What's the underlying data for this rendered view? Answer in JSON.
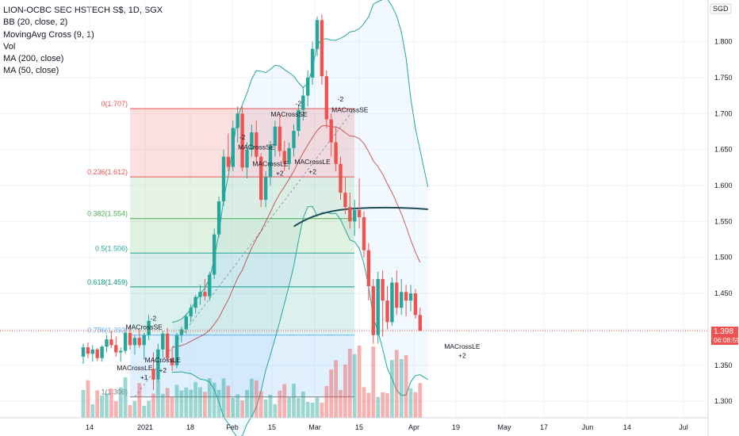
{
  "legend": {
    "title": "LION-OCBC SEC HSTECH S$, 1D, SGX",
    "indicators": [
      "BB (20, close, 2)",
      "MovingAvg Cross (9, 1)",
      "Vol",
      "MA (200, close)",
      "MA (50, close)"
    ]
  },
  "price_badge": {
    "price": "1.398",
    "time": "06:08:59",
    "color": "#ef5350"
  },
  "chart_data": {
    "type": "candlestick",
    "currency": "SGD",
    "y_ticks": [
      "1.300",
      "1.350",
      "1.400",
      "1.450",
      "1.500",
      "1.550",
      "1.600",
      "1.650",
      "1.700",
      "1.750",
      "1.800"
    ],
    "y_ticks_values": [
      1.3,
      1.35,
      1.4,
      1.45,
      1.5,
      1.55,
      1.6,
      1.65,
      1.7,
      1.75,
      1.8
    ],
    "ylim": [
      1.277,
      1.858
    ],
    "x_ticks": [
      "14",
      "2021",
      "18",
      "Feb",
      "15",
      "Mar",
      "15",
      "Apr",
      "19",
      "May",
      "17",
      "Jun",
      "14",
      "Jul"
    ],
    "fib_levels": [
      {
        "label": "0(1.707)",
        "value": 1.707,
        "color": "#ef5350"
      },
      {
        "label": "0.236(1.612)",
        "value": 1.612,
        "color": "#ef5350"
      },
      {
        "label": "0.382(1.554)",
        "value": 1.554,
        "color": "#4caf50"
      },
      {
        "label": "0.5(1.506)",
        "value": 1.506,
        "color": "#26a69a"
      },
      {
        "label": "0.618(1.459)",
        "value": 1.459,
        "color": "#089981"
      },
      {
        "label": "0.786(1.392)",
        "value": 1.392,
        "color": "#64b5f6"
      },
      {
        "label": "1(1.306)",
        "value": 1.306,
        "color": "#787b86"
      }
    ],
    "annotations": [
      {
        "text": "MACrossSE",
        "bar": 13,
        "price": 1.4
      },
      {
        "text": "-2",
        "bar": 15,
        "price": 1.412
      },
      {
        "text": "MACrossLE",
        "bar": 11,
        "price": 1.343
      },
      {
        "text": "+1",
        "bar": 13,
        "price": 1.33
      },
      {
        "text": "MACrossLE",
        "bar": 17,
        "price": 1.354
      },
      {
        "text": "+2",
        "bar": 17,
        "price": 1.34
      },
      {
        "text": "MACrossSE",
        "bar": 37,
        "price": 1.65
      },
      {
        "text": "-2",
        "bar": 34,
        "price": 1.664
      },
      {
        "text": "MACrossLE",
        "bar": 40,
        "price": 1.627
      },
      {
        "text": "+2",
        "bar": 42,
        "price": 1.614
      },
      {
        "text": "MACrossSE",
        "bar": 44,
        "price": 1.696
      },
      {
        "text": "-2",
        "bar": 46,
        "price": 1.711
      },
      {
        "text": "MACrossLE",
        "bar": 49,
        "price": 1.63
      },
      {
        "text": "+2",
        "bar": 49,
        "price": 1.616
      },
      {
        "text": "-2",
        "bar": 55,
        "price": 1.717
      },
      {
        "text": "MACrossSE",
        "bar": 57,
        "price": 1.702
      },
      {
        "text": "MACrossLE",
        "bar": 81,
        "price": 1.373
      },
      {
        "text": "+2",
        "bar": 81,
        "price": 1.36
      }
    ],
    "bars": [
      [
        1.362,
        1.38,
        1.352,
        1.375
      ],
      [
        1.375,
        1.382,
        1.36,
        1.366
      ],
      [
        1.366,
        1.378,
        1.355,
        1.372
      ],
      [
        1.372,
        1.374,
        1.356,
        1.36
      ],
      [
        1.36,
        1.378,
        1.355,
        1.376
      ],
      [
        1.376,
        1.392,
        1.368,
        1.386
      ],
      [
        1.386,
        1.398,
        1.374,
        1.378
      ],
      [
        1.378,
        1.39,
        1.362,
        1.368
      ],
      [
        1.368,
        1.375,
        1.355,
        1.37
      ],
      [
        1.37,
        1.4,
        1.366,
        1.395
      ],
      [
        1.395,
        1.405,
        1.372,
        1.378
      ],
      [
        1.378,
        1.392,
        1.365,
        1.388
      ],
      [
        1.388,
        1.4,
        1.374,
        1.378
      ],
      [
        1.378,
        1.395,
        1.358,
        1.392
      ],
      [
        1.392,
        1.42,
        1.385,
        1.412
      ],
      [
        1.345,
        1.368,
        1.316,
        1.33
      ],
      [
        1.33,
        1.38,
        1.328,
        1.372
      ],
      [
        1.372,
        1.398,
        1.36,
        1.394
      ],
      [
        1.394,
        1.402,
        1.356,
        1.36
      ],
      [
        1.36,
        1.375,
        1.342,
        1.35
      ],
      [
        1.35,
        1.395,
        1.346,
        1.392
      ],
      [
        1.392,
        1.404,
        1.382,
        1.4
      ],
      [
        1.4,
        1.422,
        1.394,
        1.418
      ],
      [
        1.418,
        1.435,
        1.41,
        1.43
      ],
      [
        1.43,
        1.448,
        1.422,
        1.445
      ],
      [
        1.445,
        1.462,
        1.434,
        1.452
      ],
      [
        1.452,
        1.47,
        1.44,
        1.446
      ],
      [
        1.446,
        1.48,
        1.44,
        1.476
      ],
      [
        1.476,
        1.54,
        1.47,
        1.532
      ],
      [
        1.532,
        1.585,
        1.528,
        1.578
      ],
      [
        1.578,
        1.65,
        1.572,
        1.64
      ],
      [
        1.64,
        1.672,
        1.62,
        1.626
      ],
      [
        1.626,
        1.69,
        1.62,
        1.68
      ],
      [
        1.68,
        1.71,
        1.66,
        1.7
      ],
      [
        1.7,
        1.71,
        1.62,
        1.625
      ],
      [
        1.625,
        1.66,
        1.61,
        1.65
      ],
      [
        1.65,
        1.685,
        1.64,
        1.674
      ],
      [
        1.674,
        1.69,
        1.63,
        1.64
      ],
      [
        1.64,
        1.645,
        1.57,
        1.58
      ],
      [
        1.58,
        1.62,
        1.57,
        1.612
      ],
      [
        1.612,
        1.662,
        1.6,
        1.655
      ],
      [
        1.655,
        1.69,
        1.64,
        1.682
      ],
      [
        1.682,
        1.7,
        1.64,
        1.648
      ],
      [
        1.648,
        1.662,
        1.62,
        1.63
      ],
      [
        1.63,
        1.66,
        1.622,
        1.652
      ],
      [
        1.652,
        1.685,
        1.64,
        1.676
      ],
      [
        1.676,
        1.712,
        1.668,
        1.705
      ],
      [
        1.705,
        1.736,
        1.69,
        1.725
      ],
      [
        1.725,
        1.76,
        1.71,
        1.75
      ],
      [
        1.75,
        1.8,
        1.74,
        1.79
      ],
      [
        1.79,
        1.835,
        1.78,
        1.83
      ],
      [
        1.83,
        1.838,
        1.74,
        1.752
      ],
      [
        1.752,
        1.76,
        1.68,
        1.692
      ],
      [
        1.692,
        1.7,
        1.64,
        1.66
      ],
      [
        1.66,
        1.682,
        1.62,
        1.63
      ],
      [
        1.63,
        1.64,
        1.58,
        1.59
      ],
      [
        1.59,
        1.612,
        1.56,
        1.57
      ],
      [
        1.57,
        1.59,
        1.54,
        1.55
      ],
      [
        1.55,
        1.58,
        1.53,
        1.566
      ],
      [
        1.566,
        1.61,
        1.54,
        1.556
      ],
      [
        1.556,
        1.564,
        1.5,
        1.51
      ],
      [
        1.51,
        1.52,
        1.44,
        1.46
      ],
      [
        1.46,
        1.47,
        1.38,
        1.392
      ],
      [
        1.392,
        1.48,
        1.38,
        1.47
      ],
      [
        1.47,
        1.482,
        1.39,
        1.44
      ],
      [
        1.44,
        1.46,
        1.4,
        1.41
      ],
      [
        1.41,
        1.472,
        1.405,
        1.465
      ],
      [
        1.465,
        1.482,
        1.42,
        1.43
      ],
      [
        1.43,
        1.47,
        1.42,
        1.452
      ],
      [
        1.452,
        1.462,
        1.418,
        1.44
      ],
      [
        1.44,
        1.462,
        1.425,
        1.45
      ],
      [
        1.45,
        1.456,
        1.415,
        1.42
      ],
      [
        1.42,
        1.43,
        1.398,
        1.398
      ]
    ],
    "x_axis_label": "",
    "y_axis_label": ""
  }
}
